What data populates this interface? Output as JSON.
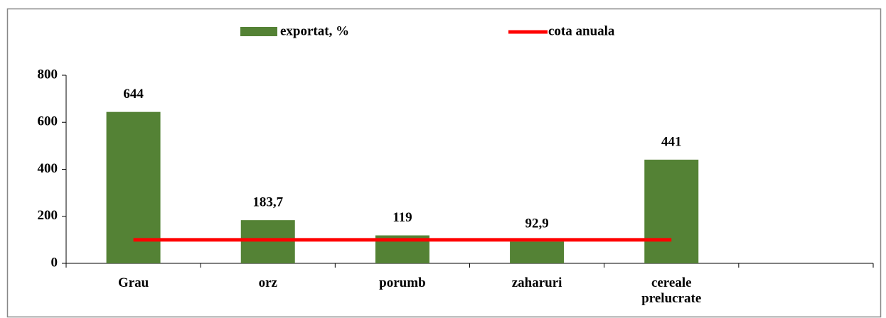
{
  "chart_data": {
    "type": "bar",
    "categories": [
      "Grau",
      "orz",
      "porumb",
      "zaharuri",
      "cereale prelucrate",
      null
    ],
    "series": [
      {
        "name": "exportat, %",
        "color": "#548235",
        "type": "bar",
        "values": [
          644,
          183.7,
          119,
          92.9,
          441,
          null
        ],
        "value_labels": [
          "644",
          "183,7",
          "119",
          "92,9",
          "441",
          null
        ]
      },
      {
        "name": "cota anuala",
        "color": "#ff0000",
        "type": "line",
        "values": [
          100,
          100,
          100,
          100,
          100,
          null
        ]
      }
    ],
    "ylim": [
      0,
      800
    ],
    "yticks": [
      0,
      200,
      400,
      600,
      800
    ],
    "grid": false,
    "legend": "top"
  }
}
